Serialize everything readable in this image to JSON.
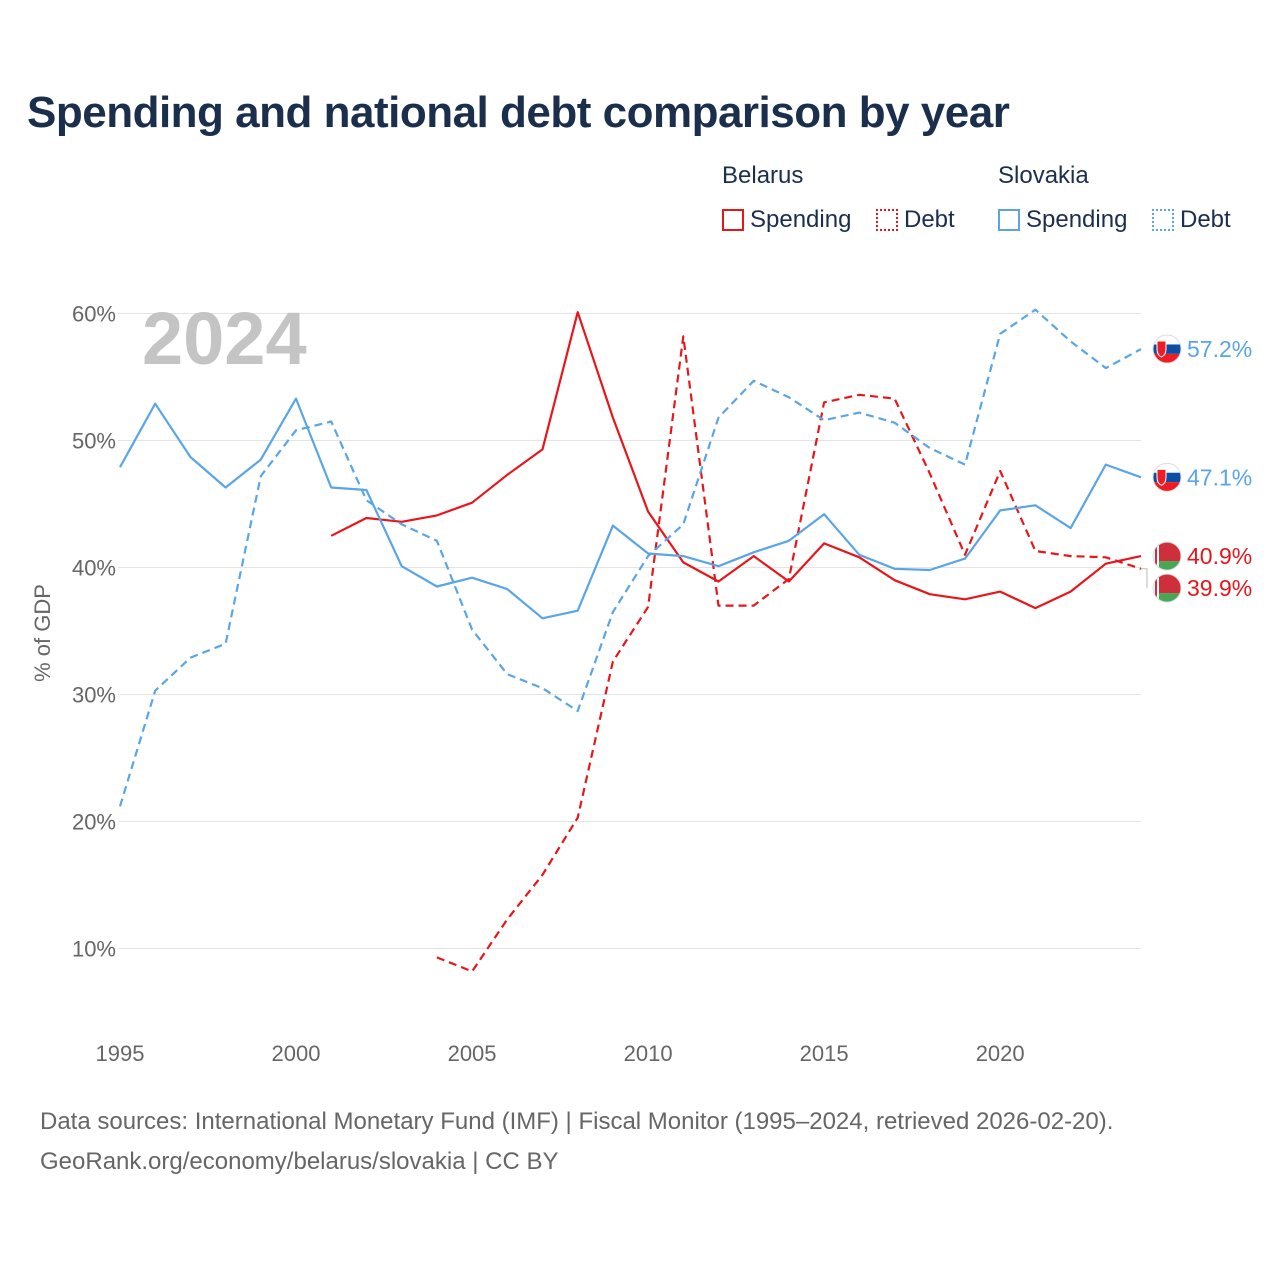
{
  "title": "Spending and national debt comparison by year",
  "year_label": "2024",
  "legend": {
    "groups": [
      {
        "country": "Belarus",
        "color": "#e8161b",
        "items": [
          {
            "label": "Spending",
            "style": "solid"
          },
          {
            "label": "Debt",
            "style": "dotted"
          }
        ]
      },
      {
        "country": "Slovakia",
        "color": "#5aa5e6",
        "items": [
          {
            "label": "Spending",
            "style": "solid"
          },
          {
            "label": "Debt",
            "style": "dotted"
          }
        ]
      }
    ]
  },
  "source": {
    "line1": "Data sources: International Monetary Fund (IMF) | Fiscal Monitor (1995–2024, retrieved 2026-02-20).",
    "line2": "GeoRank.org/economy/belarus/slovakia | CC BY"
  },
  "chart_data": {
    "type": "line",
    "title": "Spending and national debt comparison by year",
    "xlabel": "",
    "ylabel": "% of GDP",
    "xlim": [
      1995,
      2024
    ],
    "ylim": [
      5,
      62
    ],
    "y_ticks": [
      10,
      20,
      30,
      40,
      50,
      60
    ],
    "y_tick_labels": [
      "10%",
      "20%",
      "30%",
      "40%",
      "50%",
      "60%"
    ],
    "x_ticks": [
      1995,
      2000,
      2005,
      2010,
      2015,
      2020
    ],
    "x_tick_labels": [
      "1995",
      "2000",
      "2005",
      "2010",
      "2015",
      "2020"
    ],
    "grid": true,
    "series": [
      {
        "name": "Belarus Spending",
        "country": "Belarus",
        "metric": "Spending",
        "color": "#e8161b",
        "dash": "solid",
        "x": [
          2001,
          2002,
          2003,
          2004,
          2005,
          2006,
          2007,
          2008,
          2009,
          2010,
          2011,
          2012,
          2013,
          2014,
          2015,
          2016,
          2017,
          2018,
          2019,
          2020,
          2021,
          2022,
          2023,
          2024
        ],
        "y": [
          42.5,
          43.9,
          43.6,
          44.1,
          45.1,
          47.3,
          49.3,
          60.1,
          51.8,
          44.4,
          40.4,
          38.9,
          40.9,
          38.9,
          41.9,
          40.8,
          39.0,
          37.9,
          37.5,
          38.1,
          36.8,
          38.1,
          40.3,
          40.9
        ],
        "end_label": "40.9%"
      },
      {
        "name": "Belarus Debt",
        "country": "Belarus",
        "metric": "Debt",
        "color": "#e8161b",
        "dash": "dashed",
        "x": [
          2004,
          2005,
          2006,
          2007,
          2008,
          2009,
          2010,
          2011,
          2012,
          2013,
          2014,
          2015,
          2016,
          2017,
          2018,
          2019,
          2020,
          2021,
          2022,
          2023,
          2024
        ],
        "y": [
          9.3,
          8.2,
          12.3,
          15.8,
          20.3,
          32.6,
          36.9,
          58.2,
          37.0,
          37.0,
          39.1,
          53.0,
          53.6,
          53.3,
          47.4,
          41.0,
          47.6,
          41.3,
          40.9,
          40.8,
          39.9
        ],
        "end_label": "39.9%"
      },
      {
        "name": "Slovakia Spending",
        "country": "Slovakia",
        "metric": "Spending",
        "color": "#5aa5e6",
        "dash": "solid",
        "x": [
          1995,
          1996,
          1997,
          1998,
          1999,
          2000,
          2001,
          2002,
          2003,
          2004,
          2005,
          2006,
          2007,
          2008,
          2009,
          2010,
          2011,
          2012,
          2013,
          2014,
          2015,
          2016,
          2017,
          2018,
          2019,
          2020,
          2021,
          2022,
          2023,
          2024
        ],
        "y": [
          47.9,
          52.9,
          48.7,
          46.3,
          48.5,
          53.3,
          46.3,
          46.1,
          40.1,
          38.5,
          39.2,
          38.3,
          36.0,
          36.6,
          43.3,
          41.1,
          40.9,
          40.1,
          41.2,
          42.1,
          44.2,
          41.0,
          39.9,
          39.8,
          40.7,
          44.5,
          44.9,
          43.1,
          48.1,
          47.1
        ],
        "end_label": "47.1%"
      },
      {
        "name": "Slovakia Debt",
        "country": "Slovakia",
        "metric": "Debt",
        "color": "#5aa5e6",
        "dash": "dashed",
        "x": [
          1995,
          1996,
          1997,
          1998,
          1999,
          2000,
          2001,
          2002,
          2003,
          2004,
          2005,
          2006,
          2007,
          2008,
          2009,
          2010,
          2011,
          2012,
          2013,
          2014,
          2015,
          2016,
          2017,
          2018,
          2019,
          2020,
          2021,
          2022,
          2023,
          2024
        ],
        "y": [
          21.2,
          30.3,
          32.9,
          34.0,
          47.2,
          50.8,
          51.5,
          45.3,
          43.4,
          42.1,
          35.1,
          31.6,
          30.5,
          28.7,
          36.5,
          40.9,
          43.4,
          51.8,
          54.7,
          53.4,
          51.6,
          52.2,
          51.4,
          49.4,
          48.1,
          58.4,
          60.3,
          57.8,
          55.7,
          57.2
        ],
        "end_label": "57.2%"
      }
    ]
  }
}
